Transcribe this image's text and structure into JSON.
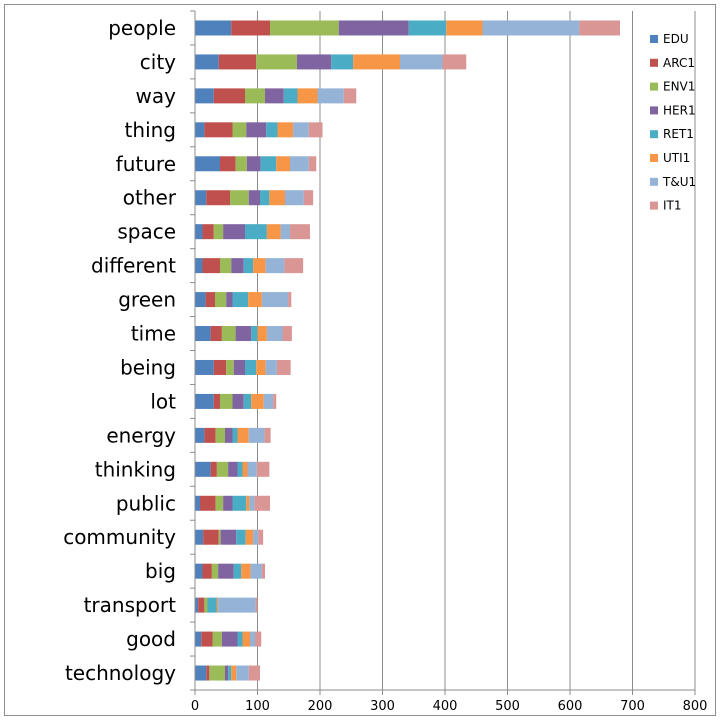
{
  "chart_data": {
    "type": "bar",
    "orientation": "horizontal",
    "stacked": true,
    "title": "",
    "xlabel": "",
    "ylabel": "",
    "xlim": [
      0,
      800
    ],
    "x_ticks": [
      0,
      100,
      200,
      300,
      400,
      500,
      600,
      700,
      800
    ],
    "grid": true,
    "legend_position": "top-right",
    "categories": [
      "people",
      "city",
      "way",
      "thing",
      "future",
      "other",
      "space",
      "different",
      "green",
      "time",
      "being",
      "lot",
      "energy",
      "thinking",
      "public",
      "community",
      "big",
      "transport",
      "good",
      "technology"
    ],
    "series": [
      {
        "name": "EDU",
        "color": "#4f81bd",
        "values": [
          58,
          38,
          30,
          15,
          40,
          18,
          12,
          12,
          17,
          25,
          30,
          30,
          15,
          25,
          8,
          13,
          12,
          5,
          10,
          18
        ]
      },
      {
        "name": "ARC1",
        "color": "#c0504d",
        "values": [
          62,
          60,
          50,
          45,
          25,
          38,
          18,
          28,
          15,
          18,
          20,
          10,
          18,
          10,
          25,
          25,
          15,
          10,
          18,
          5
        ]
      },
      {
        "name": "ENV1",
        "color": "#9bbb59",
        "values": [
          110,
          65,
          32,
          22,
          18,
          30,
          15,
          18,
          18,
          22,
          12,
          20,
          15,
          18,
          12,
          3,
          10,
          5,
          15,
          25
        ]
      },
      {
        "name": "HER1",
        "color": "#8064a2",
        "values": [
          112,
          55,
          30,
          32,
          22,
          18,
          35,
          20,
          10,
          25,
          18,
          18,
          12,
          15,
          15,
          25,
          25,
          0,
          25,
          5
        ]
      },
      {
        "name": "RET1",
        "color": "#4bacc6",
        "values": [
          60,
          35,
          22,
          18,
          25,
          15,
          35,
          15,
          25,
          10,
          18,
          12,
          8,
          8,
          22,
          15,
          12,
          15,
          8,
          5
        ]
      },
      {
        "name": "UTI1",
        "color": "#f79646",
        "values": [
          58,
          75,
          32,
          25,
          22,
          25,
          22,
          20,
          22,
          15,
          15,
          20,
          18,
          8,
          5,
          12,
          15,
          2,
          12,
          8
        ]
      },
      {
        "name": "T&U1",
        "color": "#95b3d7",
        "values": [
          155,
          68,
          42,
          25,
          30,
          30,
          15,
          30,
          42,
          25,
          18,
          15,
          25,
          15,
          8,
          8,
          18,
          60,
          8,
          20
        ]
      },
      {
        "name": "IT1",
        "color": "#d99694",
        "values": [
          65,
          38,
          20,
          22,
          12,
          15,
          32,
          30,
          5,
          15,
          22,
          5,
          10,
          20,
          25,
          8,
          5,
          3,
          10,
          18
        ]
      }
    ]
  }
}
